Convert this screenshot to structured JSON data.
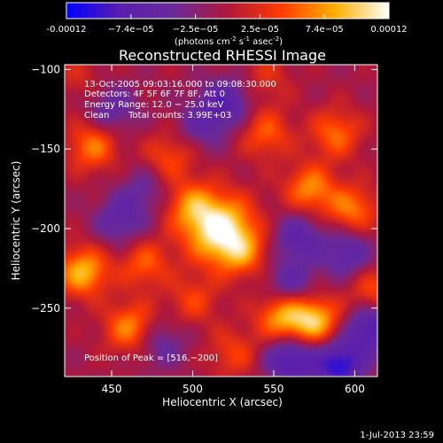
{
  "colorbar": {
    "tick_labels": [
      "-0.00012",
      "−7.4e−05",
      "−2.5e−05",
      "2.5e−05",
      "7.4e−05",
      "0.00012"
    ],
    "min": -0.00012,
    "max": 0.00012,
    "units": "(photons cm",
    "units_sup1": "-2",
    "units_mid": " s",
    "units_sup2": "-1",
    "units_end": " asec",
    "units_sup3": "-2",
    "units_close": ")",
    "colormap": [
      "#0000ff",
      "#5a1fae",
      "#6a2a9a",
      "#b0183a",
      "#ff3b00",
      "#ffb000",
      "#ffffff"
    ]
  },
  "chart_data": {
    "type": "heatmap",
    "title": "Reconstructed RHESSI Image",
    "xlabel": "Heliocentric X (arcsec)",
    "ylabel": "Heliocentric Y (arcsec)",
    "xlim": [
      421,
      614
    ],
    "ylim": [
      -293,
      -97
    ],
    "xticks": [
      450,
      500,
      550,
      600
    ],
    "yticks": [
      -100,
      -150,
      -200,
      -250
    ],
    "peak": {
      "x": 516,
      "y": -200,
      "value": 0.00012
    },
    "sources": [
      {
        "x": 516,
        "y": -200,
        "value": 1.0
      },
      {
        "x": 498,
        "y": -185,
        "value": 0.45
      },
      {
        "x": 530,
        "y": -215,
        "value": 0.45
      },
      {
        "x": 432,
        "y": -227,
        "value": 0.75
      },
      {
        "x": 438,
        "y": -148,
        "value": 0.55
      },
      {
        "x": 461,
        "y": -262,
        "value": 0.6
      },
      {
        "x": 555,
        "y": -255,
        "value": 0.7
      },
      {
        "x": 575,
        "y": -258,
        "value": 0.8
      },
      {
        "x": 598,
        "y": -188,
        "value": 0.55
      },
      {
        "x": 572,
        "y": -175,
        "value": 0.6
      },
      {
        "x": 588,
        "y": -140,
        "value": 0.5
      },
      {
        "x": 545,
        "y": -140,
        "value": 0.45
      },
      {
        "x": 485,
        "y": -155,
        "value": 0.4
      },
      {
        "x": 470,
        "y": -222,
        "value": 0.45
      },
      {
        "x": 500,
        "y": -245,
        "value": 0.35
      },
      {
        "x": 525,
        "y": -278,
        "value": 0.35
      },
      {
        "x": 612,
        "y": -240,
        "value": 0.45
      },
      {
        "x": 545,
        "y": -105,
        "value": 0.25
      },
      {
        "x": 430,
        "y": -105,
        "value": 0.2
      }
    ],
    "troughs": [
      {
        "x": 520,
        "y": -120,
        "value": -0.55
      },
      {
        "x": 565,
        "y": -205,
        "value": -0.5
      },
      {
        "x": 455,
        "y": -195,
        "value": -0.45
      },
      {
        "x": 590,
        "y": -285,
        "value": -0.8
      },
      {
        "x": 560,
        "y": -282,
        "value": -0.7
      },
      {
        "x": 610,
        "y": -262,
        "value": -0.7
      },
      {
        "x": 595,
        "y": -215,
        "value": -0.5
      },
      {
        "x": 450,
        "y": -125,
        "value": -0.4
      },
      {
        "x": 480,
        "y": -272,
        "value": -0.35
      },
      {
        "x": 505,
        "y": -135,
        "value": -0.35
      },
      {
        "x": 560,
        "y": -235,
        "value": -0.45
      },
      {
        "x": 470,
        "y": -175,
        "value": -0.3
      }
    ]
  },
  "annotation": {
    "time_range": "13-Oct-2005 09:03:16.000 to 09:08:30.000",
    "detectors": "Detectors: 4F 5F 6F 7F 8F, Att 0",
    "energy": "Energy Range: 12.0 − 25.0 keV",
    "algo": "Clean",
    "counts": "Total counts: 3.99E+03",
    "peak_label": "Position of Peak = [516,−200]"
  },
  "footer": {
    "date": "1-Jul-2013 23:59"
  }
}
